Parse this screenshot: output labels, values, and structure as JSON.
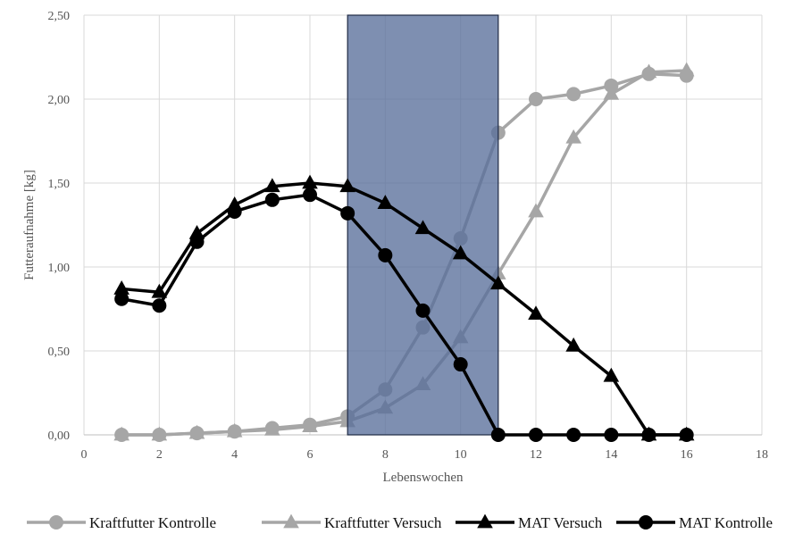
{
  "chart_data": {
    "type": "line",
    "xlabel": "Lebenswochen",
    "ylabel": "Futteraufnahme [kg]",
    "xlim": [
      0,
      18
    ],
    "ylim": [
      0,
      2.5
    ],
    "x_ticks": [
      "0",
      "2",
      "4",
      "6",
      "8",
      "10",
      "12",
      "14",
      "16",
      "18"
    ],
    "y_ticks": [
      "0,00",
      "0,50",
      "1,00",
      "1,50",
      "2,00",
      "2,50"
    ],
    "grid": true,
    "legend_position": "bottom",
    "highlight_band": {
      "x_start": 7,
      "x_end": 11,
      "color": "#5a6f9b"
    },
    "series": [
      {
        "name": "Kraftfutter Kontrolle",
        "marker": "circle",
        "color": "#a6a6a6",
        "x": [
          1,
          2,
          3,
          4,
          5,
          6,
          7,
          8,
          9,
          10,
          11,
          12,
          13,
          14,
          15,
          16
        ],
        "values": [
          0.0,
          0.0,
          0.01,
          0.02,
          0.04,
          0.06,
          0.11,
          0.27,
          0.64,
          1.17,
          1.8,
          2.0,
          2.03,
          2.08,
          2.15,
          2.14
        ]
      },
      {
        "name": "Kraftfutter Versuch",
        "marker": "triangle",
        "color": "#a6a6a6",
        "x": [
          1,
          2,
          3,
          4,
          5,
          6,
          7,
          8,
          9,
          10,
          11,
          12,
          13,
          14,
          15,
          16
        ],
        "values": [
          0.0,
          0.0,
          0.01,
          0.02,
          0.03,
          0.05,
          0.08,
          0.16,
          0.3,
          0.58,
          0.96,
          1.33,
          1.77,
          2.03,
          2.16,
          2.17
        ]
      },
      {
        "name": "MAT Versuch",
        "marker": "triangle",
        "color": "#000000",
        "x": [
          1,
          2,
          3,
          4,
          5,
          6,
          7,
          8,
          9,
          10,
          11,
          12,
          13,
          14,
          15,
          16
        ],
        "values": [
          0.87,
          0.85,
          1.2,
          1.37,
          1.48,
          1.5,
          1.48,
          1.38,
          1.23,
          1.08,
          0.9,
          0.72,
          0.53,
          0.35,
          0.0,
          0.0
        ]
      },
      {
        "name": "MAT Kontrolle",
        "marker": "circle",
        "color": "#000000",
        "x": [
          1,
          2,
          3,
          4,
          5,
          6,
          7,
          8,
          9,
          10,
          11,
          12,
          13,
          14,
          15,
          16
        ],
        "values": [
          0.81,
          0.77,
          1.15,
          1.33,
          1.4,
          1.43,
          1.32,
          1.07,
          0.74,
          0.42,
          0.0,
          0.0,
          0.0,
          0.0,
          0.0,
          0.0
        ]
      }
    ]
  }
}
